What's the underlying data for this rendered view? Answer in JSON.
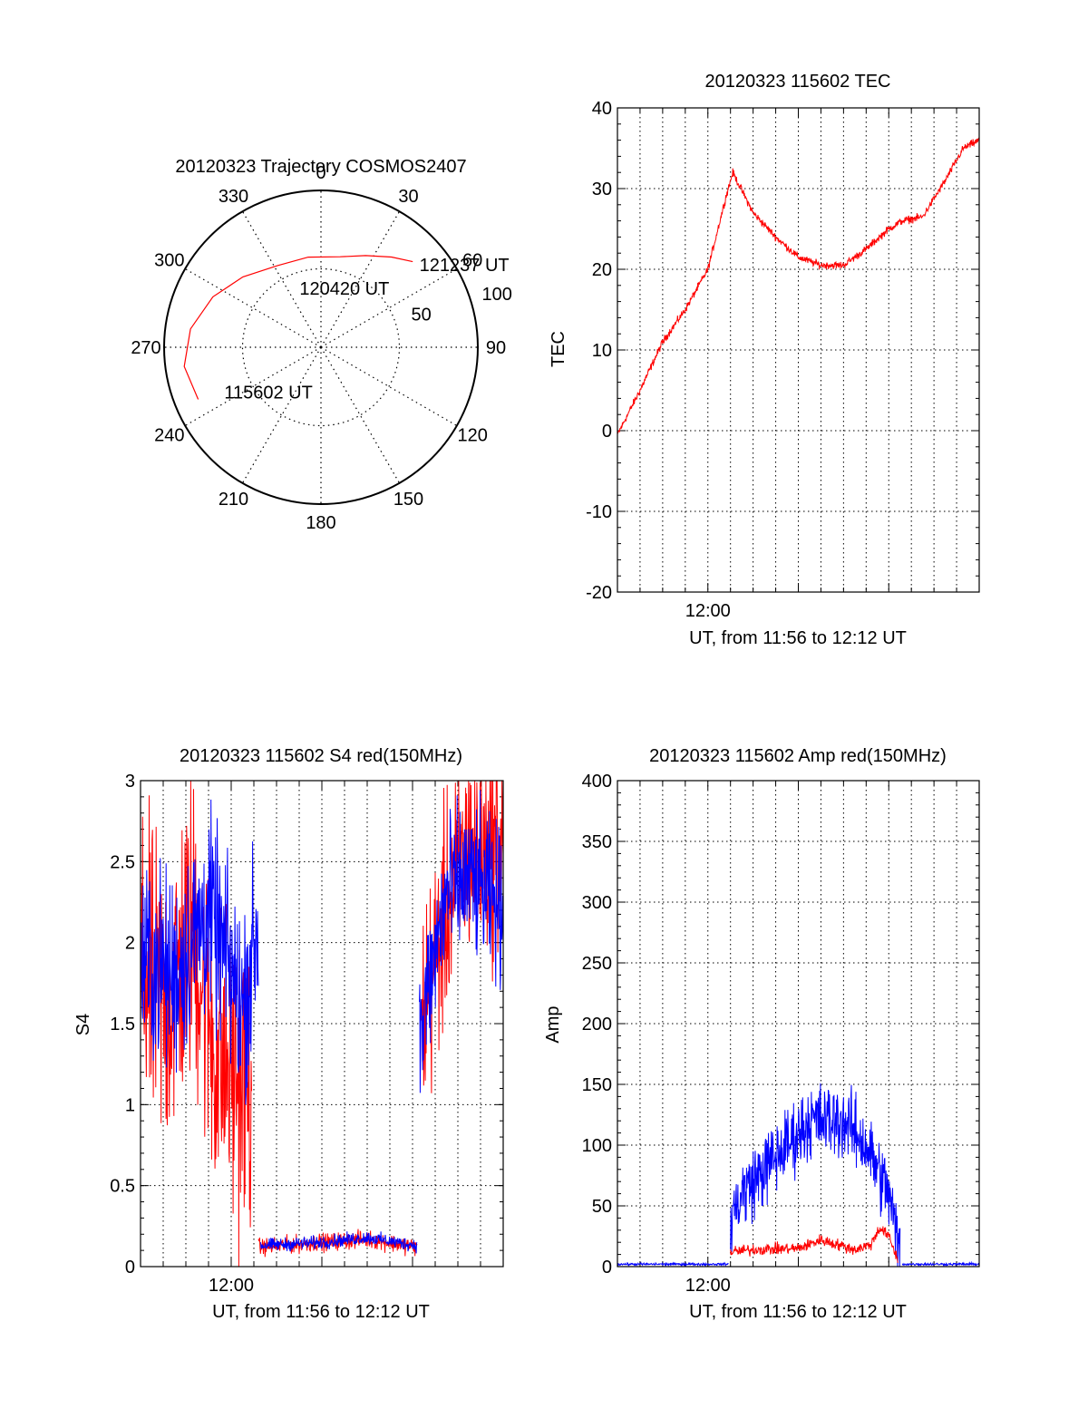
{
  "chart_data": [
    {
      "type": "polar",
      "title": "20120323 Trajectory COSMOS2407",
      "azimuth_labels": [
        "0",
        "30",
        "60",
        "90",
        "120",
        "150",
        "180",
        "210",
        "240",
        "270",
        "300",
        "330"
      ],
      "azimuths": [
        0,
        30,
        60,
        90,
        120,
        150,
        180,
        210,
        240,
        270,
        300,
        330
      ],
      "radial_labels": [
        {
          "value": 50,
          "label": "50"
        },
        {
          "value": 100,
          "label": "100"
        }
      ],
      "radial_max": 100,
      "trajectory": [
        {
          "az": 247,
          "r": 85
        },
        {
          "az": 262,
          "r": 88
        },
        {
          "az": 278,
          "r": 84
        },
        {
          "az": 295,
          "r": 76
        },
        {
          "az": 312,
          "r": 67
        },
        {
          "az": 332,
          "r": 59
        },
        {
          "az": 352,
          "r": 58
        },
        {
          "az": 12,
          "r": 59
        },
        {
          "az": 26,
          "r": 65
        },
        {
          "az": 38,
          "r": 73
        },
        {
          "az": 47,
          "r": 80
        }
      ],
      "annotations": [
        {
          "text": "121237 UT",
          "az": 50,
          "r": 82
        },
        {
          "text": "120420 UT",
          "az": 340,
          "r": 40
        },
        {
          "text": "115602 UT",
          "az": 245,
          "r": 68
        }
      ],
      "line_color": "#ff0000"
    },
    {
      "type": "line",
      "title": "20120323 115602 TEC",
      "xlabel": "UT, from 11:56 to 12:12 UT",
      "ylabel": "TEC",
      "xlim": [
        0,
        16
      ],
      "ylim": [
        -20,
        40
      ],
      "x_tick_labels": [
        {
          "x": 4,
          "label": "12:00"
        }
      ],
      "y_ticks": [
        -20,
        -10,
        0,
        10,
        20,
        30,
        40
      ],
      "grid": true,
      "series": [
        {
          "name": "TEC",
          "color": "#ff0000",
          "x": [
            0,
            1,
            2,
            3,
            4,
            4.8,
            5.1,
            6,
            7,
            8,
            9,
            10,
            11,
            12,
            12.6,
            13.5,
            14.5,
            15.3,
            16
          ],
          "y": [
            -0.5,
            5,
            11,
            15,
            20,
            29,
            32,
            27,
            24,
            21.5,
            20.5,
            20.5,
            22.5,
            25,
            26,
            26.5,
            31,
            35,
            36
          ],
          "noise": 0.7
        }
      ]
    },
    {
      "type": "line",
      "title": "20120323 115602 S4 red(150MHz)",
      "xlabel": "UT, from 11:56 to 12:12 UT",
      "ylabel": "S4",
      "xlim": [
        0,
        16
      ],
      "ylim": [
        0,
        3
      ],
      "x_tick_labels": [
        {
          "x": 4,
          "label": "12:00"
        }
      ],
      "y_ticks": [
        0,
        0.5,
        1,
        1.5,
        2,
        2.5,
        3
      ],
      "y_tick_labels": [
        "0",
        "0.5",
        "1",
        "1.5",
        "2",
        "2.5",
        "3"
      ],
      "grid": true,
      "series": [
        {
          "name": "red",
          "color": "#ff0000",
          "segments": [
            {
              "x": [
                0,
                1.2,
                2.3,
                3.3,
                4.9
              ],
              "y": [
                1.8,
                1.6,
                2.1,
                1.3,
                1.1
              ],
              "noise": 1.4,
              "min": 0,
              "max": 3
            },
            {
              "x": [
                5.2,
                8,
                10,
                12.2
              ],
              "y": [
                0.12,
                0.15,
                0.17,
                0.12
              ],
              "noise": 0.08,
              "min": 0.05,
              "max": 0.4
            },
            {
              "x": [
                12.4,
                13.5,
                14.5,
                16
              ],
              "y": [
                1.5,
                2.2,
                2.6,
                2.6
              ],
              "noise": 1.0,
              "min": 0,
              "max": 3
            }
          ]
        },
        {
          "name": "blue",
          "color": "#0000ff",
          "segments": [
            {
              "x": [
                0,
                1.5,
                3,
                4.5,
                5.2
              ],
              "y": [
                1.9,
                1.8,
                2.2,
                1.6,
                2.1
              ],
              "noise": 0.9,
              "min": 0.3,
              "max": 3
            },
            {
              "x": [
                5.3,
                8,
                10,
                12.2
              ],
              "y": [
                0.13,
                0.15,
                0.18,
                0.13
              ],
              "noise": 0.06,
              "min": 0.05,
              "max": 0.35
            },
            {
              "x": [
                12.3,
                13.5,
                14.5,
                16
              ],
              "y": [
                1.4,
                2.3,
                2.4,
                2.2
              ],
              "noise": 0.7,
              "min": 0.2,
              "max": 3
            }
          ]
        }
      ]
    },
    {
      "type": "line",
      "title": "20120323 115602 Amp red(150MHz)",
      "xlabel": "UT, from 11:56 to 12:12 UT",
      "ylabel": "Amp",
      "xlim": [
        0,
        16
      ],
      "ylim": [
        0,
        400
      ],
      "x_tick_labels": [
        {
          "x": 4,
          "label": "12:00"
        }
      ],
      "y_ticks": [
        0,
        50,
        100,
        150,
        200,
        250,
        300,
        350,
        400
      ],
      "grid": true,
      "series": [
        {
          "name": "blue",
          "color": "#0000ff",
          "segments": [
            {
              "x": [
                0,
                4.9
              ],
              "y": [
                2,
                2
              ],
              "noise": 1.5,
              "min": 0,
              "max": 8
            },
            {
              "x": [
                5.0,
                5.5,
                7,
                8.5,
                10,
                11,
                12,
                12.5
              ],
              "y": [
                40,
                60,
                90,
                120,
                120,
                100,
                60,
                10
              ],
              "noise": 45,
              "min": 0,
              "max": 210
            },
            {
              "x": [
                12.6,
                16
              ],
              "y": [
                2,
                2
              ],
              "noise": 1.5,
              "min": 0,
              "max": 8
            }
          ]
        },
        {
          "name": "red",
          "color": "#ff0000",
          "segments": [
            {
              "x": [
                5.0,
                6,
                8,
                9,
                10.5,
                11.2,
                11.6,
                12,
                12.4
              ],
              "y": [
                12,
                14,
                15,
                22,
                14,
                18,
                32,
                25,
                5
              ],
              "noise": 7,
              "min": 0,
              "max": 45
            }
          ]
        }
      ]
    }
  ]
}
